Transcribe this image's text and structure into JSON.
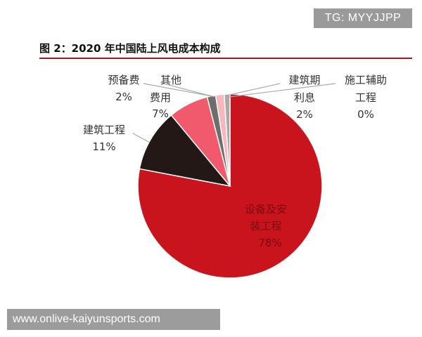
{
  "watermark_top": "TG: MYYJJPP",
  "watermark_bottom": "www.onlive-kaiyunsports.com",
  "figure_title": "图 2：2020 年中国陆上风电成本构成",
  "chart_data": {
    "type": "pie",
    "title": "图 2：2020 年中国陆上风电成本构成",
    "unit": "%",
    "slices": [
      {
        "name": "设备及安装工程",
        "label_lines": [
          "设备及安",
          "装工程"
        ],
        "value": 78,
        "value_label": "78%",
        "color": "#c9141e",
        "label_placement": "inside"
      },
      {
        "name": "建筑工程",
        "label_lines": [
          "建筑工程"
        ],
        "value": 11,
        "value_label": "11%",
        "color": "#231816",
        "label_placement": "outside"
      },
      {
        "name": "其他费用",
        "label_lines": [
          "其他",
          "费用"
        ],
        "value": 7,
        "value_label": "7%",
        "color": "#f05a6c",
        "label_placement": "outside"
      },
      {
        "name": "预备费",
        "label_lines": [
          "预备费"
        ],
        "value": 2,
        "value_label": "2%",
        "color": "#6e6e6e",
        "label_placement": "outside"
      },
      {
        "name": "建筑期利息",
        "label_lines": [
          "建筑期",
          "利息"
        ],
        "value": 2,
        "value_label": "2%",
        "color": "#f8b6bd",
        "label_placement": "outside"
      },
      {
        "name": "施工辅助工程",
        "label_lines": [
          "施工辅助",
          "工程"
        ],
        "value": 0,
        "value_label": "0%",
        "color": "#a9a9a9",
        "label_placement": "outside"
      }
    ]
  }
}
